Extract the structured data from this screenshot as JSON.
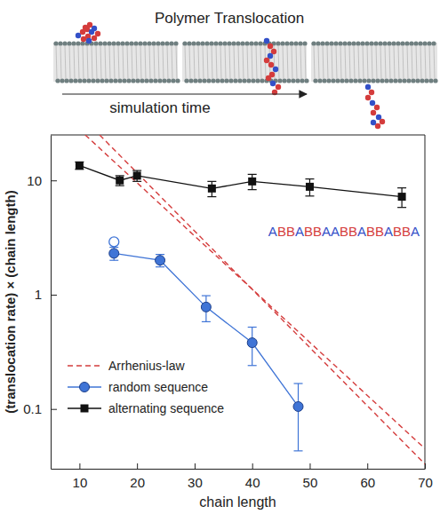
{
  "chart_data": {
    "type": "line",
    "title": "Polymer Translocation",
    "annotations": [
      "simulation time",
      "ABBABBAABBABBABBA"
    ],
    "x_label": "chain length",
    "y_label": "(translocation rate) × (chain length)",
    "log": "y",
    "xlim": [
      5,
      70
    ],
    "ylim": [
      0.03,
      25
    ],
    "xticks": [
      10,
      20,
      30,
      40,
      50,
      60,
      70
    ],
    "yticks": [
      0.1,
      1,
      10
    ],
    "legend": "lower left",
    "series": [
      {
        "name": "Arrhenius-law",
        "color": "#d43c3c",
        "type": "line",
        "line_style": "dashed",
        "marker": "none",
        "x": [
          11,
          70
        ],
        "values": [
          25,
          0.045
        ]
      },
      {
        "color": "#d43c3c",
        "type": "line",
        "line_style": "dashed",
        "marker": "none",
        "x": [
          13.5,
          70
        ],
        "values": [
          25,
          0.033
        ]
      },
      {
        "name": "random sequence",
        "color": "#3f74d6",
        "type": "line",
        "line_style": "solid",
        "marker": "circle",
        "x": [
          16,
          24,
          32,
          40,
          48
        ],
        "values": [
          2.3,
          2.0,
          0.78,
          0.38,
          0.105
        ],
        "errors": [
          0.3,
          0.25,
          0.2,
          0.14,
          0.062
        ]
      },
      {
        "color": "#3f74d6",
        "type": "scatter",
        "line_style": "none",
        "marker": "open-circle",
        "x": [
          16
        ],
        "values": [
          2.9
        ]
      },
      {
        "name": "alternating sequence",
        "color": "#111111",
        "type": "line",
        "line_style": "solid",
        "marker": "square",
        "x": [
          10,
          17,
          20,
          33,
          40,
          50,
          66
        ],
        "values": [
          13.5,
          10,
          11,
          8.5,
          9.8,
          8.8,
          7.2
        ],
        "errors": [
          1.0,
          1.0,
          1.2,
          1.3,
          1.5,
          1.5,
          1.4
        ]
      }
    ]
  }
}
